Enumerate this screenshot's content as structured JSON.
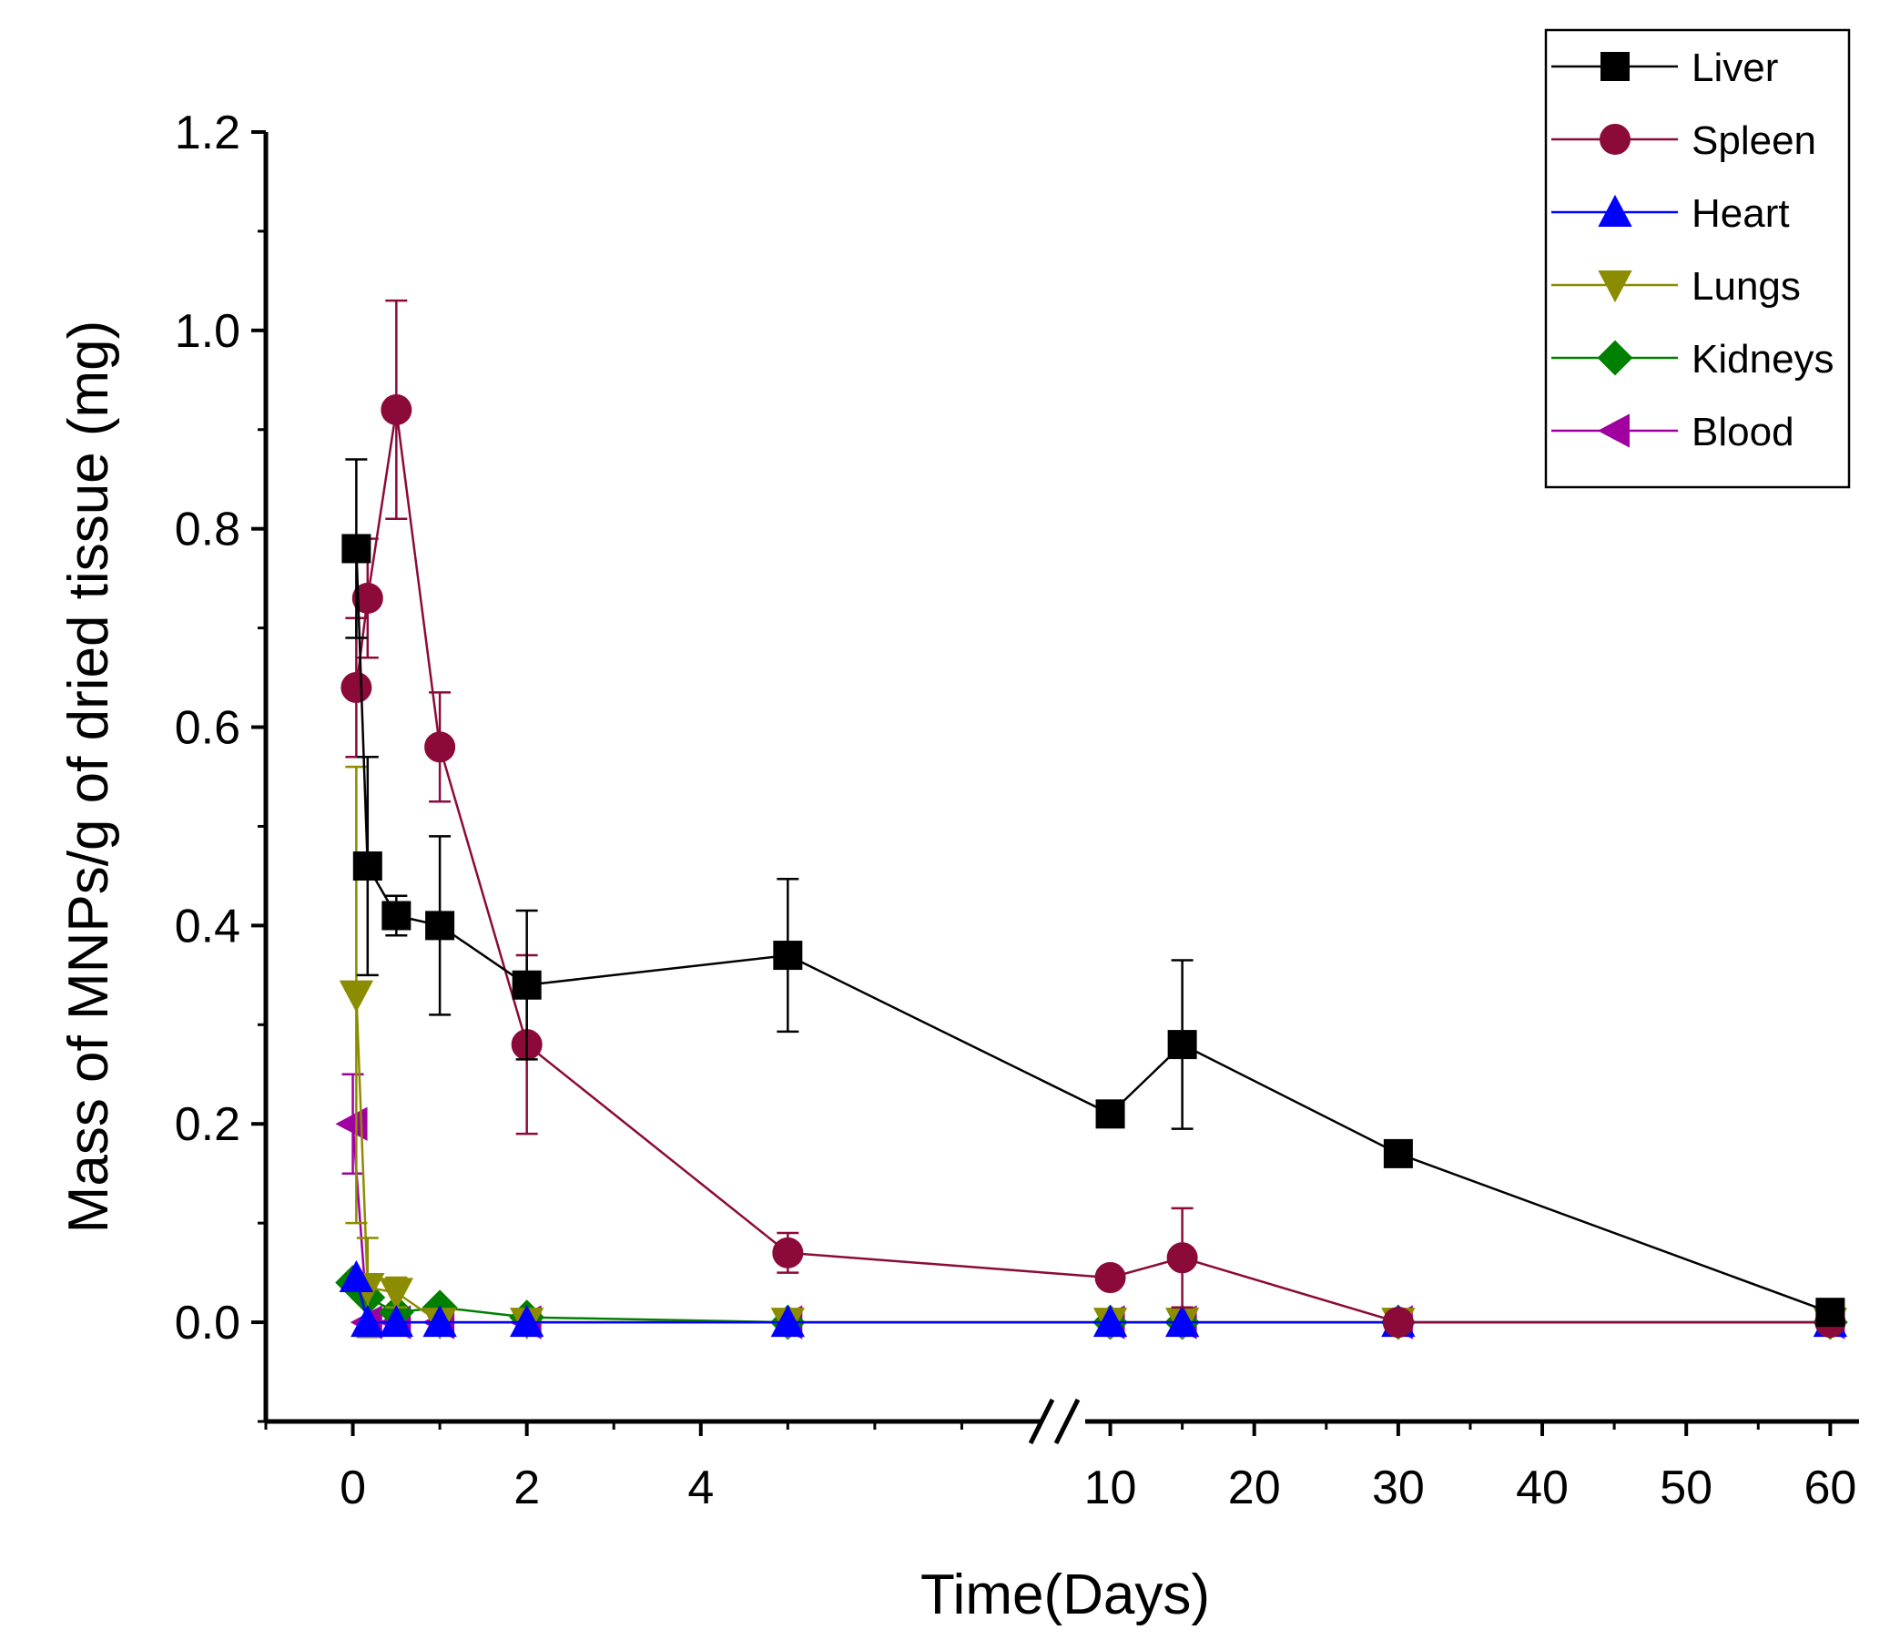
{
  "chart_data": {
    "type": "line",
    "title": "",
    "xlabel": "Time(Days)",
    "ylabel": "Mass of MNPs/g of dried tissue (mg)",
    "ylim": [
      -0.1,
      1.2
    ],
    "y_ticks": [
      "0.0",
      "0.2",
      "0.4",
      "0.6",
      "0.8",
      "1.0",
      "1.2"
    ],
    "y_tick_values": [
      0.0,
      0.2,
      0.4,
      0.6,
      0.8,
      1.0,
      1.2
    ],
    "x_axis": {
      "broken": true,
      "segment1": {
        "range": [
          -1,
          8
        ],
        "ticks": [
          0,
          2,
          4
        ],
        "tick_labels": [
          "0",
          "2",
          "4"
        ]
      },
      "segment2": {
        "range": [
          7.5,
          62
        ],
        "ticks": [
          10,
          20,
          30,
          40,
          50,
          60
        ],
        "tick_labels": [
          "10",
          "20",
          "30",
          "40",
          "50",
          "60"
        ]
      }
    },
    "legend_position": "top-right",
    "series": [
      {
        "name": "Liver",
        "marker": "square",
        "color": "#000000",
        "x": [
          0.04,
          0.17,
          0.5,
          1,
          2,
          5,
          10,
          15,
          30,
          60
        ],
        "y": [
          0.78,
          0.46,
          0.41,
          0.4,
          0.34,
          0.37,
          0.21,
          0.28,
          0.17,
          0.01
        ],
        "err": [
          0.09,
          0.11,
          0.02,
          0.09,
          0.075,
          0.077,
          0.0,
          0.085,
          0.0,
          0.0
        ]
      },
      {
        "name": "Spleen",
        "marker": "circle",
        "color": "#8b0a3a",
        "x": [
          0.04,
          0.17,
          0.5,
          1,
          2,
          5,
          10,
          15,
          30,
          60
        ],
        "y": [
          0.64,
          0.73,
          0.92,
          0.58,
          0.28,
          0.07,
          0.045,
          0.065,
          0.0,
          0.0
        ],
        "err": [
          0.07,
          0.06,
          0.11,
          0.055,
          0.09,
          0.02,
          0.0,
          0.05,
          0.0,
          0.0
        ]
      },
      {
        "name": "Heart",
        "marker": "triangle-up",
        "color": "#0000ff",
        "x": [
          0.04,
          0.17,
          0.5,
          1,
          2,
          5,
          10,
          15,
          30,
          60
        ],
        "y": [
          0.045,
          0.0,
          0.0,
          0.0,
          0.0,
          0.0,
          0.0,
          0.0,
          0.0,
          0.0
        ],
        "err": [
          0.0,
          0.0,
          0.0,
          0.0,
          0.0,
          0.0,
          0.0,
          0.0,
          0.0,
          0.0
        ]
      },
      {
        "name": "Lungs",
        "marker": "triangle-down",
        "color": "#8c8c00",
        "x": [
          0.04,
          0.17,
          0.5,
          1,
          2,
          5,
          10,
          15,
          30,
          60
        ],
        "y": [
          0.33,
          0.035,
          0.03,
          0.0,
          0.0,
          0.0,
          0.0,
          0.0,
          0.0,
          0.0
        ],
        "err": [
          0.23,
          0.05,
          0.015,
          0.0,
          0.0,
          0.0,
          0.0,
          0.01,
          0.0,
          0.0
        ]
      },
      {
        "name": "Kidneys",
        "marker": "diamond",
        "color": "#008000",
        "x": [
          0.0,
          0.17,
          0.5,
          1,
          2,
          5,
          10,
          15,
          30,
          60
        ],
        "y": [
          0.04,
          0.025,
          0.01,
          0.015,
          0.005,
          0.0,
          0.0,
          0.0,
          0.0,
          0.0
        ],
        "err": [
          0.0,
          0.0,
          0.0,
          0.0,
          0.0,
          0.0,
          0.0,
          0.0,
          0.0,
          0.0
        ]
      },
      {
        "name": "Blood",
        "marker": "triangle-left",
        "color": "#a000a0",
        "x": [
          0.0,
          0.17,
          0.5,
          1,
          2,
          5,
          10,
          15,
          30,
          60
        ],
        "y": [
          0.2,
          0.0,
          0.0,
          0.0,
          0.0,
          0.0,
          0.0,
          0.0,
          0.0,
          0.0
        ],
        "err": [
          0.05,
          0.0,
          0.0,
          0.0,
          0.0,
          0.0,
          0.0,
          0.0,
          0.0,
          0.0
        ]
      }
    ]
  }
}
